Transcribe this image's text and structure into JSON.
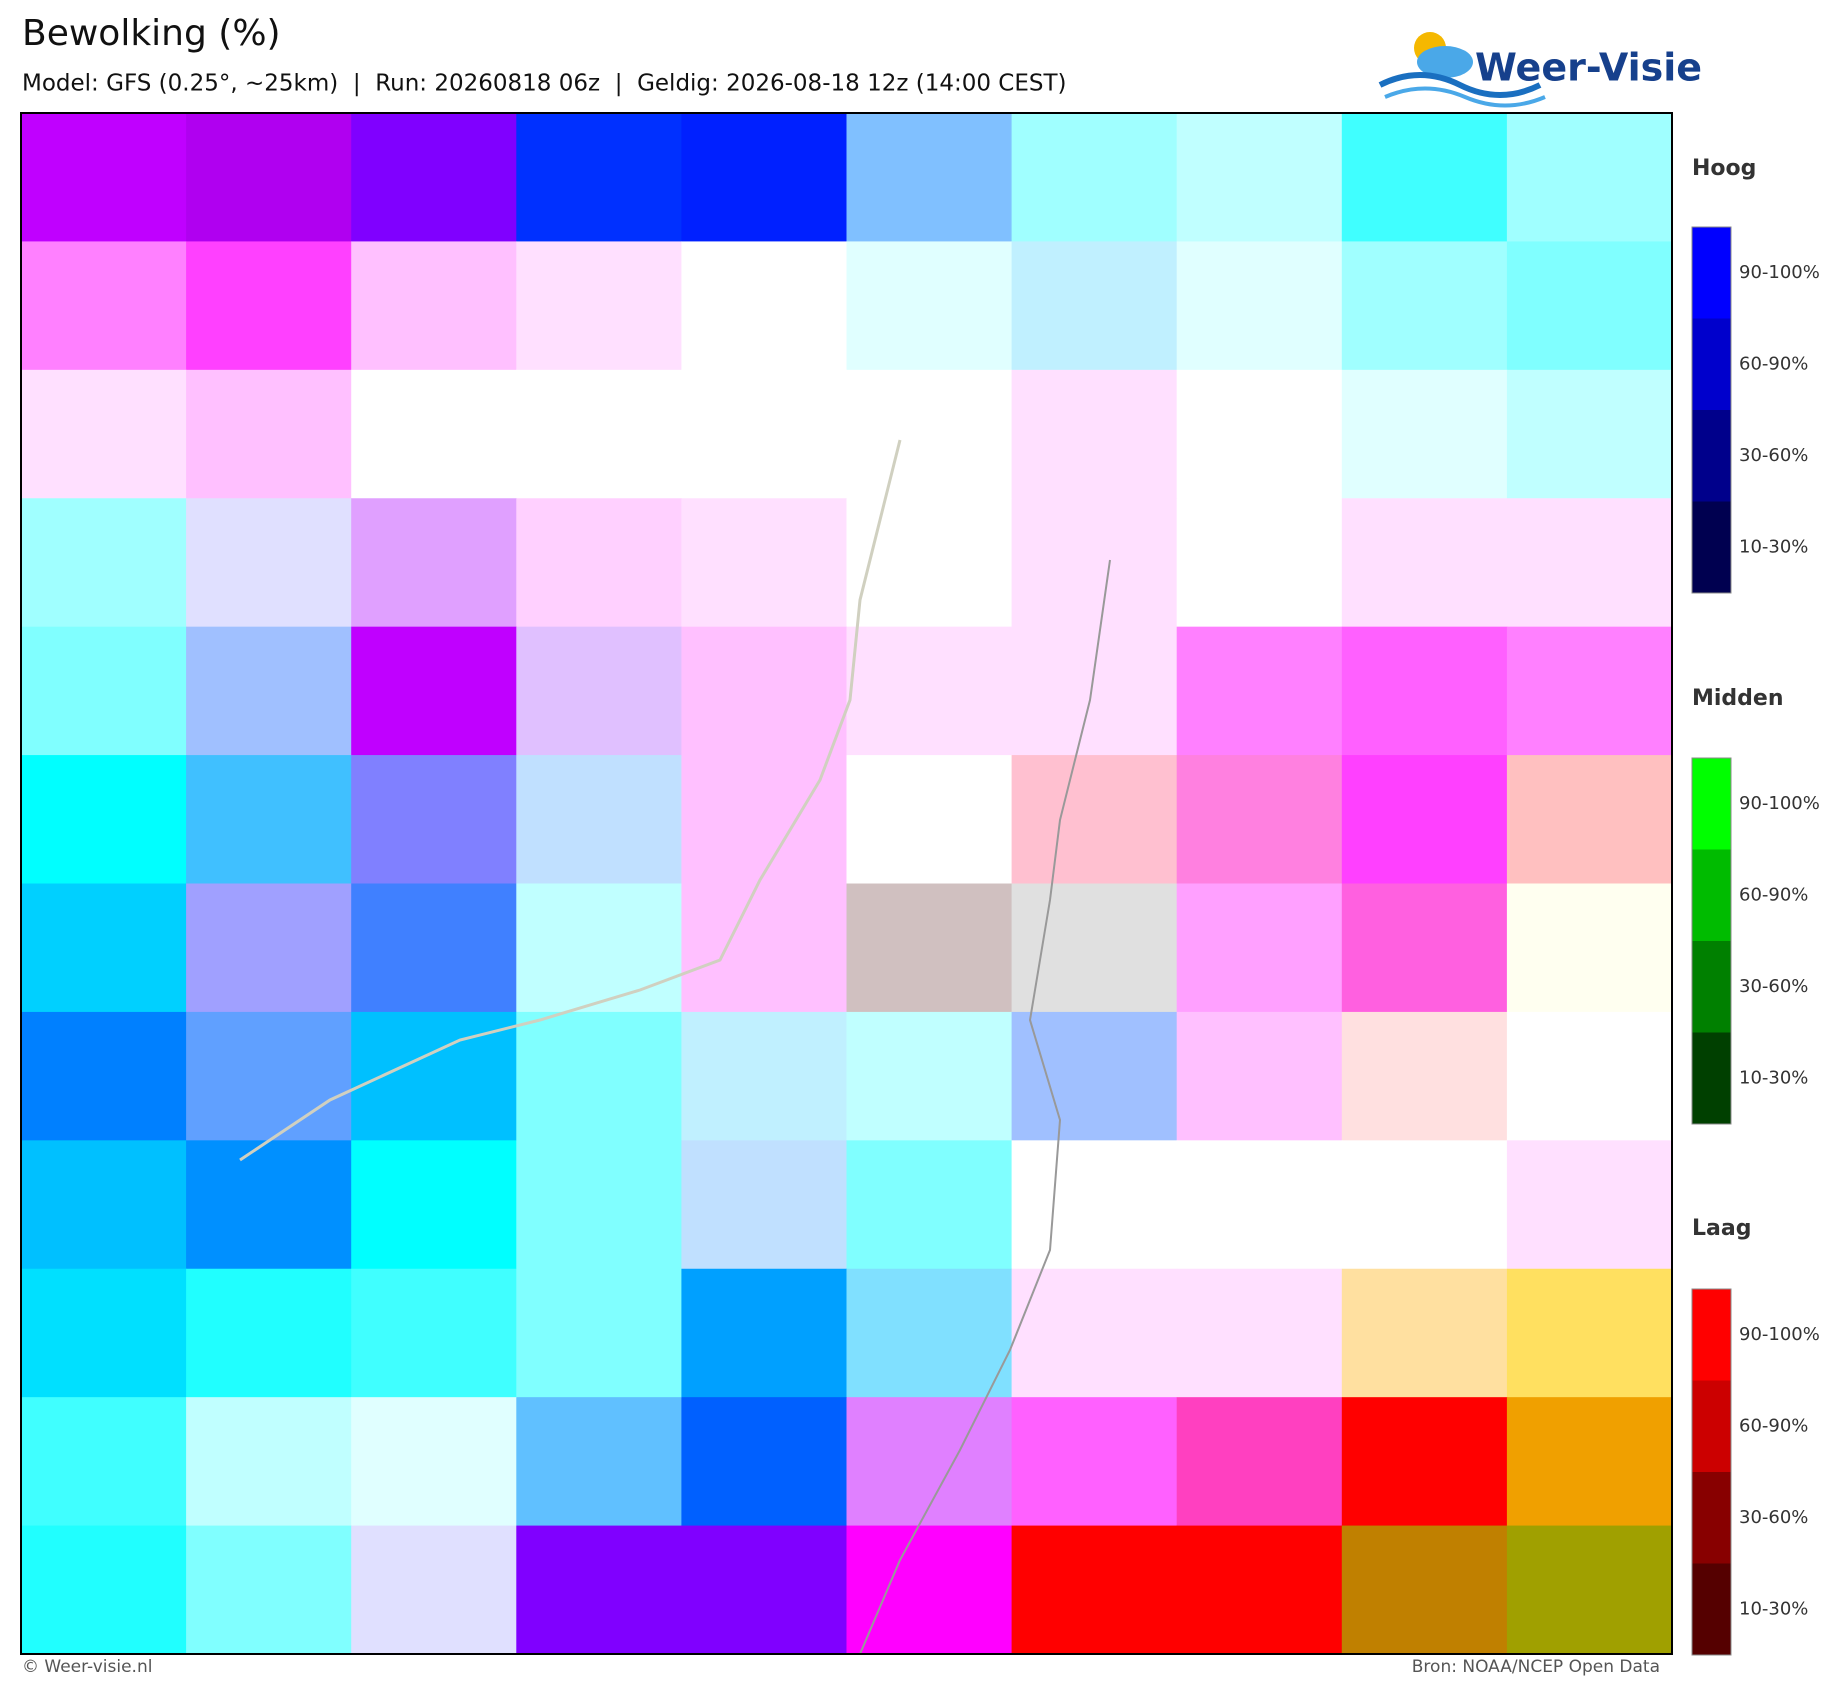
{
  "header": {
    "title": "Bewolking (%)",
    "subtitle": "Model: GFS (0.25°, ~25km)  |  Run: 20260818 06z  |  Geldig: 2026-08-18 12z (14:00 CEST)",
    "logo": "Weer-Visie"
  },
  "legend": [
    {
      "title": "Hoog",
      "items": [
        {
          "label": "90-100%",
          "color": "#0000ff"
        },
        {
          "label": "60-90%",
          "color": "#0000cc"
        },
        {
          "label": "30-60%",
          "color": "#00008b"
        },
        {
          "label": "10-30%",
          "color": "#000050"
        }
      ]
    },
    {
      "title": "Midden",
      "items": [
        {
          "label": "90-100%",
          "color": "#00ff00"
        },
        {
          "label": "60-90%",
          "color": "#00bb00"
        },
        {
          "label": "30-60%",
          "color": "#008000"
        },
        {
          "label": "10-30%",
          "color": "#004000"
        }
      ]
    },
    {
      "title": "Laag",
      "items": [
        {
          "label": "90-100%",
          "color": "#ff0000"
        },
        {
          "label": "60-90%",
          "color": "#cc0000"
        },
        {
          "label": "30-60%",
          "color": "#880000"
        },
        {
          "label": "10-30%",
          "color": "#550000"
        }
      ]
    }
  ],
  "footer": {
    "left": "© Weer-visie.nl",
    "right": "Bron: NOAA/NCEP Open Data"
  }
}
